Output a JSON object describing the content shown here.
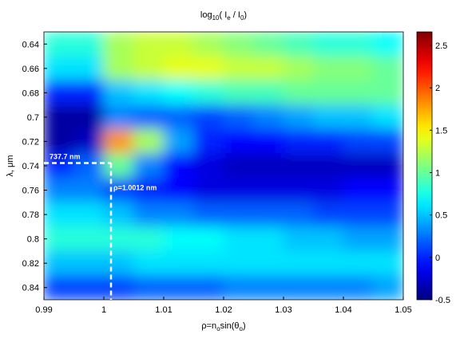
{
  "chart_data": {
    "type": "heatmap",
    "title": [
      "log",
      "10",
      "( I",
      "e",
      " / I",
      "0",
      ")"
    ],
    "x_label": [
      "ρ=n",
      "o",
      "sin(θ",
      "o",
      ")"
    ],
    "y_label": "λ, μm",
    "xlim": [
      0.99,
      1.05
    ],
    "xticks": [
      0.99,
      1,
      1.01,
      1.02,
      1.03,
      1.04,
      1.05
    ],
    "ylim": [
      0.63,
      0.85
    ],
    "yticks": [
      0.64,
      0.66,
      0.68,
      0.7,
      0.72,
      0.74,
      0.76,
      0.78,
      0.8,
      0.82,
      0.84
    ],
    "clim": [
      -0.5,
      2.66
    ],
    "cticks": [
      -0.5,
      0,
      0.5,
      1,
      1.5,
      2,
      2.5
    ],
    "colormap": "jet",
    "x": [
      0.9925,
      0.9975,
      1.0025,
      1.0075,
      1.0125,
      1.0175,
      1.0225,
      1.0275,
      1.0325,
      1.0375,
      1.0425,
      1.0475
    ],
    "y": [
      0.64,
      0.66,
      0.68,
      0.7,
      0.72,
      0.74,
      0.76,
      0.78,
      0.8,
      0.82,
      0.84
    ],
    "z": [
      [
        0.8,
        0.8,
        1.2,
        1.3,
        1.3,
        1.2,
        1.1,
        1.0,
        0.9,
        0.8,
        0.8,
        0.7
      ],
      [
        0.6,
        0.6,
        1.2,
        1.3,
        1.4,
        1.4,
        1.3,
        1.3,
        1.2,
        1.1,
        1.1,
        1.0
      ],
      [
        0.0,
        0.0,
        0.5,
        0.6,
        0.7,
        0.8,
        0.9,
        0.9,
        1.0,
        1.0,
        1.0,
        1.0
      ],
      [
        -0.4,
        -0.4,
        0.3,
        0.2,
        0.2,
        0.1,
        0.2,
        0.3,
        0.4,
        0.5,
        0.5,
        0.6
      ],
      [
        -0.4,
        -0.3,
        1.8,
        1.2,
        0.4,
        0.0,
        -0.1,
        -0.1,
        0.0,
        0.0,
        0.1,
        0.1
      ],
      [
        0.0,
        0.2,
        1.0,
        0.3,
        -0.1,
        -0.2,
        -0.3,
        -0.3,
        -0.3,
        -0.3,
        -0.3,
        -0.3
      ],
      [
        0.3,
        0.3,
        0.1,
        0.0,
        -0.1,
        -0.2,
        -0.2,
        -0.2,
        -0.2,
        -0.2,
        -0.1,
        -0.1
      ],
      [
        0.6,
        0.6,
        0.5,
        0.3,
        0.3,
        0.2,
        0.2,
        0.2,
        0.2,
        0.1,
        0.1,
        0.1
      ],
      [
        0.8,
        0.8,
        0.8,
        0.8,
        0.7,
        0.7,
        0.6,
        0.6,
        0.5,
        0.5,
        0.4,
        0.4
      ],
      [
        0.5,
        0.5,
        0.5,
        0.6,
        0.6,
        0.6,
        0.6,
        0.6,
        0.6,
        0.6,
        0.6,
        0.6
      ],
      [
        0.1,
        0.1,
        0.1,
        0.2,
        0.2,
        0.2,
        0.3,
        0.3,
        0.3,
        0.3,
        0.3,
        0.4
      ]
    ],
    "annotations": [
      {
        "text": "737.7 nm",
        "axis": "y",
        "value": 0.7377
      },
      {
        "text": "ρ=1.0012 nm",
        "axis": "x",
        "value": 1.0012
      }
    ]
  }
}
